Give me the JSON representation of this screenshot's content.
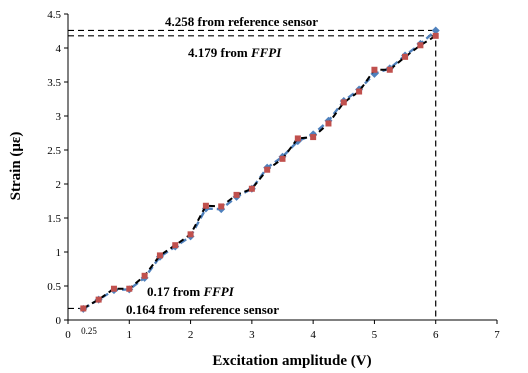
{
  "chart_data": {
    "type": "line",
    "xlabel": "Excitation amplitude (V)",
    "ylabel": "Strain (με)",
    "xlim": [
      0,
      7
    ],
    "ylim": [
      0,
      4.5
    ],
    "xticks": [
      "0",
      "1",
      "2",
      "3",
      "4",
      "5",
      "6",
      "7"
    ],
    "yticks": [
      "0",
      "0.5",
      "1",
      "1.5",
      "2",
      "2.5",
      "3",
      "3.5",
      "4",
      "4.5"
    ],
    "extra_xtick": "0.25",
    "grid": false,
    "legend": "none",
    "series": [
      {
        "color": "#4f81bd",
        "style": "dashed-with-diamond-markers",
        "x": [
          0.25,
          0.5,
          0.75,
          1.0,
          1.25,
          1.5,
          1.75,
          2.0,
          2.25,
          2.5,
          2.75,
          3.0,
          3.25,
          3.5,
          3.75,
          4.0,
          4.25,
          4.5,
          4.75,
          5.0,
          5.25,
          5.5,
          5.75,
          6.0
        ],
        "y": [
          0.164,
          0.3,
          0.44,
          0.45,
          0.62,
          0.93,
          1.08,
          1.23,
          1.64,
          1.63,
          1.81,
          1.93,
          2.24,
          2.4,
          2.63,
          2.73,
          2.93,
          3.22,
          3.39,
          3.62,
          3.7,
          3.89,
          4.06,
          4.258
        ]
      },
      {
        "color": "#c0504d",
        "style": "black-dashed-with-square-markers",
        "x": [
          0.25,
          0.5,
          0.75,
          1.0,
          1.25,
          1.5,
          1.75,
          2.0,
          2.25,
          2.5,
          2.75,
          3.0,
          3.25,
          3.5,
          3.75,
          4.0,
          4.25,
          4.5,
          4.75,
          5.0,
          5.25,
          5.5,
          5.75,
          6.0
        ],
        "y": [
          0.17,
          0.3,
          0.46,
          0.46,
          0.65,
          0.95,
          1.1,
          1.26,
          1.68,
          1.67,
          1.84,
          1.93,
          2.21,
          2.37,
          2.67,
          2.69,
          2.89,
          3.2,
          3.36,
          3.68,
          3.68,
          3.87,
          4.04,
          4.179
        ]
      }
    ],
    "annotations": {
      "top_ref": "4.258 from reference sensor",
      "top_ffpi_value": "4.179 from ",
      "top_ffpi_name": "FFPI",
      "bottom_ffpi_value": "0.17 from ",
      "bottom_ffpi_name": "FFPI",
      "bottom_ref": "0.164 from reference sensor"
    }
  }
}
